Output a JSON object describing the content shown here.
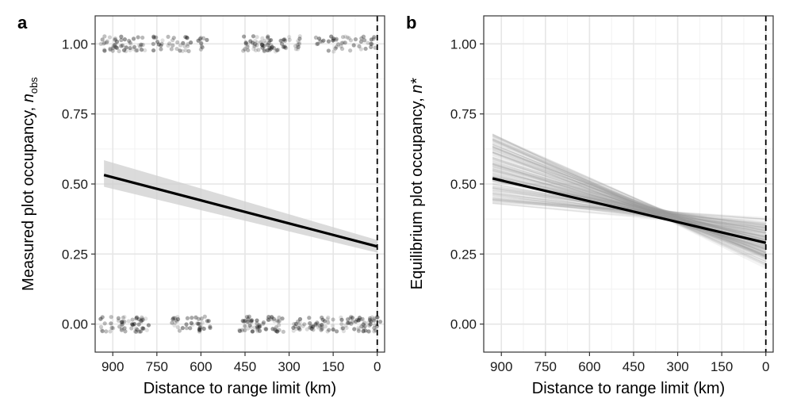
{
  "chart_data": [
    {
      "panel": "a",
      "type": "scatter",
      "xlabel": "Distance to range limit (km)",
      "ylabel_main": "Measured plot occupancy, ",
      "ylabel_var": "n",
      "ylabel_sub": "obs",
      "xlim": [
        960,
        -25
      ],
      "ylim": [
        -0.1,
        1.1
      ],
      "xticks": [
        900,
        750,
        600,
        450,
        300,
        150,
        0
      ],
      "xtick_labels": [
        "900",
        "750",
        "600",
        "450",
        "300",
        "150",
        "0"
      ],
      "yticks": [
        0,
        0.25,
        0.5,
        0.75,
        1
      ],
      "ytick_labels": [
        "0.00",
        "0.25",
        "0.50",
        "0.75",
        "1.00"
      ],
      "vline_x": 0,
      "fit_line": {
        "x": [
          930,
          0
        ],
        "y": [
          0.532,
          0.277
        ]
      },
      "ci_band": {
        "x": [
          930,
          0
        ],
        "lower": [
          0.49,
          0.255
        ],
        "upper": [
          0.585,
          0.3
        ]
      },
      "points_present": {
        "y": 1,
        "x": [
          930,
          920,
          900,
          890,
          880,
          860,
          850,
          830,
          820,
          810,
          800,
          760,
          740,
          700,
          690,
          660,
          650,
          640,
          600,
          590,
          450,
          440,
          430,
          420,
          410,
          400,
          390,
          380,
          370,
          360,
          350,
          340,
          330,
          320,
          310,
          270,
          260,
          200,
          190,
          160,
          140,
          130,
          110,
          100,
          80,
          50,
          30,
          10
        ]
      },
      "points_absent": {
        "y": 0,
        "x": [
          930,
          900,
          880,
          870,
          860,
          840,
          830,
          820,
          810,
          800,
          790,
          690,
          680,
          670,
          640,
          610,
          600,
          590,
          580,
          460,
          450,
          440,
          430,
          420,
          410,
          400,
          390,
          370,
          360,
          350,
          340,
          330,
          280,
          270,
          260,
          230,
          220,
          200,
          190,
          180,
          170,
          150,
          120,
          110,
          100,
          90,
          70,
          60,
          50,
          40,
          30,
          20,
          10,
          0
        ]
      }
    },
    {
      "panel": "b",
      "type": "line",
      "xlabel": "Distance to range limit (km)",
      "ylabel_main": "Equilibrium plot occupancy, ",
      "ylabel_var": "n*",
      "ylabel_sub": "",
      "xlim": [
        960,
        -25
      ],
      "ylim": [
        -0.1,
        1.1
      ],
      "xticks": [
        900,
        750,
        600,
        450,
        300,
        150,
        0
      ],
      "xtick_labels": [
        "900",
        "750",
        "600",
        "450",
        "300",
        "150",
        "0"
      ],
      "yticks": [
        0,
        0.25,
        0.5,
        0.75,
        1
      ],
      "ytick_labels": [
        "0.00",
        "0.25",
        "0.50",
        "0.75",
        "1.00"
      ],
      "vline_x": 0,
      "mean_line": {
        "x": [
          930,
          0
        ],
        "y": [
          0.52,
          0.29
        ]
      },
      "posterior_lines": {
        "x": [
          930,
          0
        ],
        "start_range": [
          0.43,
          0.68
        ],
        "end_range": [
          0.22,
          0.36
        ]
      }
    }
  ]
}
